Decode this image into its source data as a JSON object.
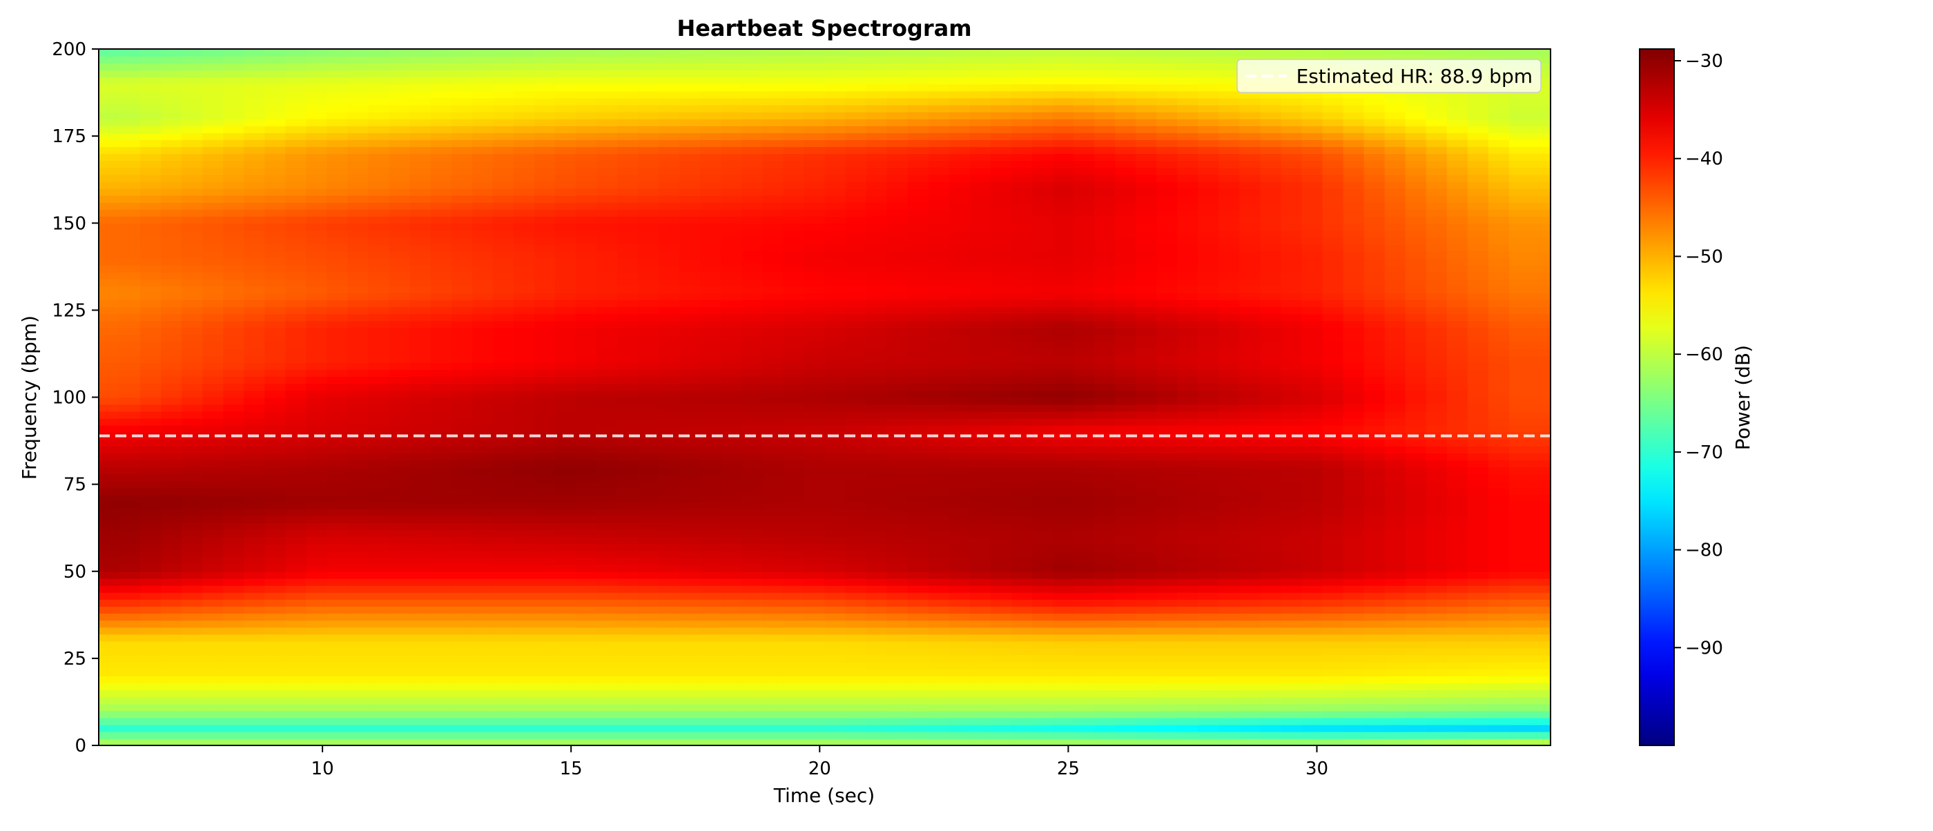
{
  "chart_data": {
    "type": "heatmap",
    "title": "Heartbeat Spectrogram",
    "xlabel": "Time (sec)",
    "ylabel": "Frequency (bpm)",
    "xlim": [
      5.5,
      34.7
    ],
    "ylim": [
      0,
      200
    ],
    "xticks": [
      10,
      15,
      20,
      25,
      30
    ],
    "yticks": [
      0,
      25,
      50,
      75,
      100,
      125,
      150,
      175,
      200
    ],
    "colormap": "jet",
    "colorbar": {
      "label": "Power (dB)",
      "range": [
        -100,
        -28.8
      ],
      "ticks": [
        -90,
        -80,
        -70,
        -60,
        -50,
        -40,
        -30
      ]
    },
    "estimated_hr": {
      "value": 88.9,
      "label": "Estimated HR: 88.9 bpm",
      "color": "#ffffff",
      "style": "dashed"
    },
    "legend_position": "top-right",
    "power_db_grid": {
      "time_sec": [
        6,
        10,
        15,
        20,
        25,
        30,
        34
      ],
      "freq_bpm": [
        0,
        5,
        10,
        20,
        30,
        40,
        50,
        60,
        70,
        80,
        90,
        100,
        110,
        120,
        130,
        140,
        150,
        160,
        170,
        180,
        190,
        200
      ],
      "values": [
        [
          -60,
          -60,
          -60,
          -60,
          -60,
          -60,
          -57
        ],
        [
          -70,
          -70,
          -70,
          -70,
          -72,
          -75,
          -76
        ],
        [
          -62,
          -62,
          -62,
          -62,
          -62,
          -63,
          -64
        ],
        [
          -54,
          -54,
          -54,
          -54,
          -54,
          -54,
          -55
        ],
        [
          -53,
          -53,
          -53,
          -53,
          -52,
          -52,
          -52
        ],
        [
          -42,
          -45,
          -45,
          -44,
          -40,
          -42,
          -45
        ],
        [
          -32,
          -37,
          -37,
          -35,
          -31,
          -34,
          -38
        ],
        [
          -31,
          -35,
          -34,
          -33,
          -32,
          -34,
          -38
        ],
        [
          -30,
          -31,
          -31,
          -32,
          -31,
          -33,
          -38
        ],
        [
          -33,
          -32,
          -30,
          -32,
          -32,
          -33,
          -39
        ],
        [
          -37,
          -35,
          -33,
          -34,
          -37,
          -38,
          -42
        ],
        [
          -43,
          -36,
          -33,
          -32,
          -30,
          -35,
          -43
        ],
        [
          -44,
          -40,
          -37,
          -34,
          -33,
          -37,
          -43
        ],
        [
          -45,
          -40,
          -37,
          -35,
          -32,
          -37,
          -44
        ],
        [
          -47,
          -44,
          -40,
          -38,
          -37,
          -40,
          -46
        ],
        [
          -45,
          -43,
          -40,
          -37,
          -36,
          -40,
          -47
        ],
        [
          -45,
          -42,
          -39,
          -38,
          -36,
          -41,
          -48
        ],
        [
          -50,
          -47,
          -43,
          -40,
          -35,
          -41,
          -51
        ],
        [
          -53,
          -48,
          -44,
          -41,
          -38,
          -43,
          -54
        ],
        [
          -60,
          -55,
          -52,
          -50,
          -46,
          -52,
          -59
        ],
        [
          -58,
          -57,
          -56,
          -56,
          -55,
          -56,
          -58
        ],
        [
          -67,
          -64,
          -62,
          -61,
          -60,
          -61,
          -62
        ]
      ]
    }
  }
}
